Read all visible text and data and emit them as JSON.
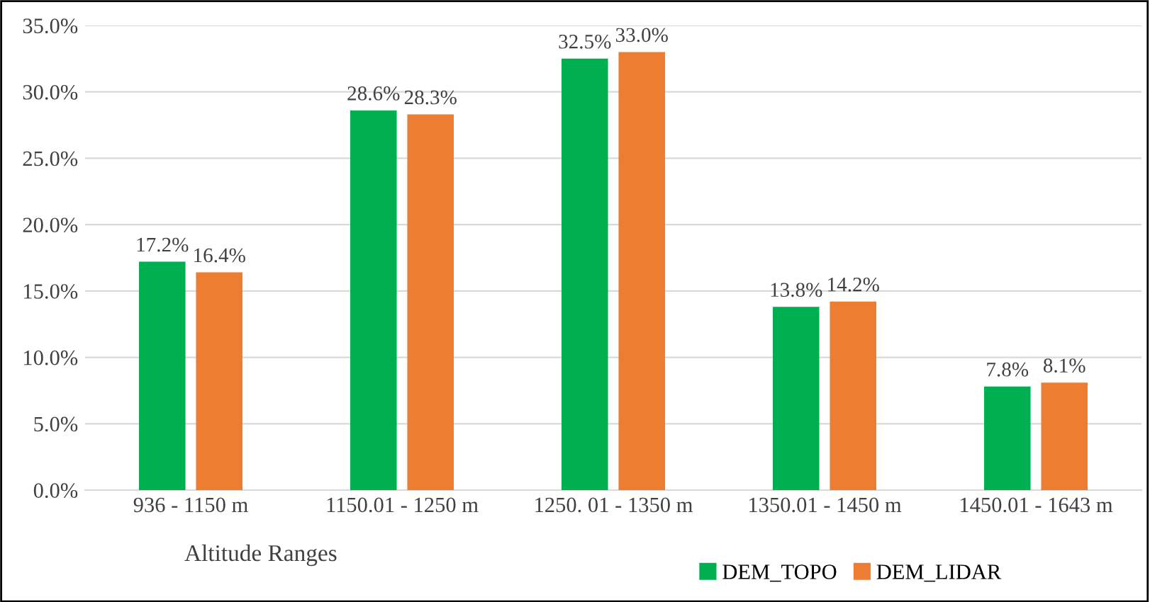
{
  "chart_data": {
    "type": "bar",
    "xlabel": "Altitude Ranges",
    "categories": [
      "936 - 1150 m",
      "1150.01 - 1250 m",
      "1250. 01 - 1350 m",
      "1350.01 - 1450 m",
      "1450.01 - 1643 m"
    ],
    "series": [
      {
        "name": "DEM_TOPO",
        "color": "#00b050",
        "values": [
          17.2,
          28.6,
          32.5,
          13.8,
          7.8
        ],
        "value_labels": [
          "17.2%",
          "28.6%",
          "32.5%",
          "13.8%",
          "7.8%"
        ]
      },
      {
        "name": "DEM_LIDAR",
        "color": "#ed7d31",
        "values": [
          16.4,
          28.3,
          33.0,
          14.2,
          8.1
        ],
        "value_labels": [
          "16.4%",
          "28.3%",
          "33.0%",
          "14.2%",
          "8.1%"
        ]
      }
    ],
    "ylim": [
      0,
      35
    ],
    "yticks": [
      {
        "value": 0,
        "label": "0.0%"
      },
      {
        "value": 5,
        "label": "5.0%"
      },
      {
        "value": 10,
        "label": "10.0%"
      },
      {
        "value": 15,
        "label": "15.0%"
      },
      {
        "value": 20,
        "label": "20.0%"
      },
      {
        "value": 25,
        "label": "25.0%"
      },
      {
        "value": 30,
        "label": "30.0%"
      },
      {
        "value": 35,
        "label": "35.0%"
      }
    ],
    "grid": "y",
    "legend": "bottom right"
  }
}
